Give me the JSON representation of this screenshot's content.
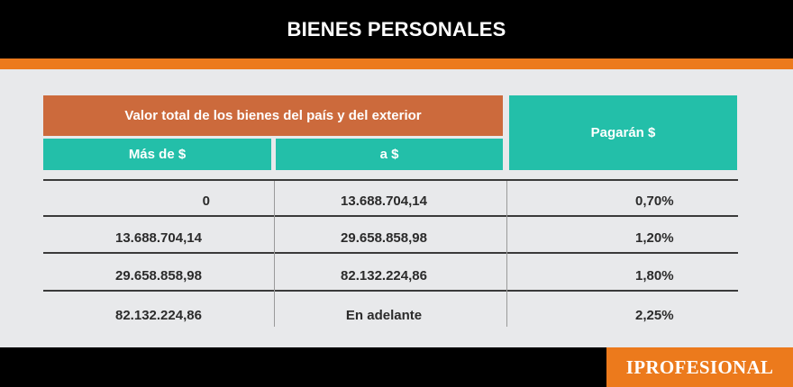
{
  "header": {
    "title": "BIENES PERSONALES"
  },
  "table": {
    "group_header": "Valor total de los bienes del país y del exterior",
    "columns": [
      "Más de $",
      "a $",
      "Pagarán $"
    ],
    "rows": [
      [
        "0",
        "13.688.704,14",
        "0,70%"
      ],
      [
        "13.688.704,14",
        "29.658.858,98",
        "1,20%"
      ],
      [
        "29.658.858,98",
        "82.132.224,86",
        "1,80%"
      ],
      [
        "82.132.224,86",
        "En adelante",
        "2,25%"
      ]
    ]
  },
  "footer": {
    "brand": "IPROFESIONAL"
  },
  "colors": {
    "orange": "#ec7a1c",
    "header_orange": "#cc6a3c",
    "teal": "#23bfa9",
    "panel": "#e8e9eb"
  }
}
